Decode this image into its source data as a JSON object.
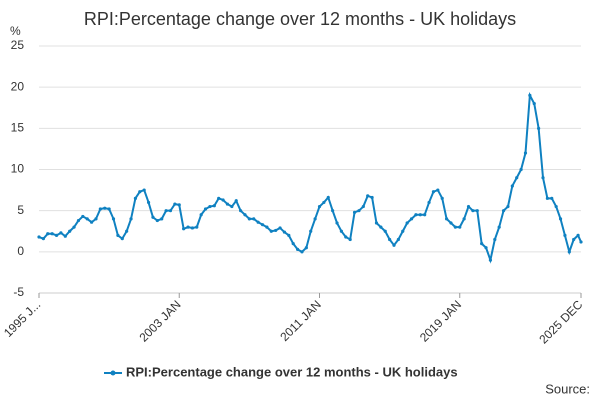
{
  "chart_data": {
    "type": "line",
    "title": "RPI:Percentage change over 12 months - UK holidays",
    "y_label": "%",
    "source": "Source:",
    "x": [
      1995,
      1995.25,
      1995.5,
      1995.75,
      1996,
      1996.25,
      1996.5,
      1996.75,
      1997,
      1997.25,
      1997.5,
      1997.75,
      1998,
      1998.25,
      1998.5,
      1998.75,
      1999,
      1999.25,
      1999.5,
      1999.75,
      2000,
      2000.25,
      2000.5,
      2000.75,
      2001,
      2001.25,
      2001.5,
      2001.75,
      2002,
      2002.25,
      2002.5,
      2002.75,
      2003,
      2003.25,
      2003.5,
      2003.75,
      2004,
      2004.25,
      2004.5,
      2004.75,
      2005,
      2005.25,
      2005.5,
      2005.75,
      2006,
      2006.25,
      2006.5,
      2006.75,
      2007,
      2007.25,
      2007.5,
      2007.75,
      2008,
      2008.25,
      2008.5,
      2008.75,
      2009,
      2009.25,
      2009.5,
      2009.75,
      2010,
      2010.25,
      2010.5,
      2010.75,
      2011,
      2011.25,
      2011.5,
      2011.75,
      2012,
      2012.25,
      2012.5,
      2012.75,
      2013,
      2013.25,
      2013.5,
      2013.75,
      2014,
      2014.25,
      2014.5,
      2014.75,
      2015,
      2015.25,
      2015.5,
      2015.75,
      2016,
      2016.25,
      2016.5,
      2016.75,
      2017,
      2017.25,
      2017.5,
      2017.75,
      2018,
      2018.25,
      2018.5,
      2018.75,
      2019,
      2019.25,
      2019.5,
      2019.75,
      2020,
      2020.25,
      2020.5,
      2020.75,
      2021,
      2021.25,
      2021.5,
      2021.75,
      2022,
      2022.25,
      2022.5,
      2022.75,
      2023,
      2023.25,
      2023.5,
      2023.75,
      2024,
      2024.25,
      2024.5,
      2024.75,
      2025,
      2025.25,
      2025.5,
      2025.75,
      2025.917
    ],
    "series": [
      {
        "name": "RPI:Percentage change over 12 months - UK holidays",
        "color": "#0f81c1",
        "values": [
          1.8,
          1.6,
          2.2,
          2.2,
          2.0,
          2.3,
          1.9,
          2.5,
          3.0,
          3.8,
          4.3,
          4.0,
          3.6,
          4.0,
          5.2,
          5.3,
          5.2,
          4.0,
          2.0,
          1.6,
          2.5,
          4.0,
          6.5,
          7.3,
          7.5,
          6.0,
          4.2,
          3.8,
          4.0,
          5.0,
          5.0,
          5.8,
          5.7,
          2.8,
          3.0,
          2.9,
          3.0,
          4.5,
          5.2,
          5.5,
          5.6,
          6.5,
          6.3,
          5.8,
          5.5,
          6.2,
          5.0,
          4.5,
          4.0,
          4.0,
          3.6,
          3.3,
          3.0,
          2.5,
          2.6,
          2.9,
          2.4,
          2.0,
          1.0,
          0.3,
          0.0,
          0.5,
          2.5,
          4.0,
          5.5,
          6.0,
          6.6,
          5.0,
          3.5,
          2.5,
          1.8,
          1.5,
          4.8,
          5.0,
          5.5,
          6.8,
          6.6,
          3.5,
          3.0,
          2.5,
          1.5,
          0.8,
          1.5,
          2.5,
          3.5,
          4.0,
          4.5,
          4.5,
          4.5,
          6.0,
          7.3,
          7.5,
          6.5,
          4.0,
          3.5,
          3.0,
          3.0,
          4.0,
          5.5,
          5.0,
          5.0,
          1.0,
          0.5,
          -1.0,
          1.5,
          3.0,
          5.0,
          5.5,
          8.0,
          9.0,
          10.0,
          12.0,
          19.0,
          18.0,
          15.0,
          9.0,
          6.5,
          6.5,
          5.5,
          4.0,
          2.0,
          0.0,
          1.5,
          2.0,
          1.2
        ]
      }
    ],
    "xlim": [
      1995,
      2025.917
    ],
    "xticks": [
      {
        "value": 1995,
        "label": "1995 J..."
      },
      {
        "value": 2003,
        "label": "2003 JAN"
      },
      {
        "value": 2011,
        "label": "2011 JAN"
      },
      {
        "value": 2019,
        "label": "2019 JAN"
      },
      {
        "value": 2025.917,
        "label": "2025 DEC"
      }
    ],
    "ylim": [
      -5,
      25
    ],
    "yticks": [
      -5,
      0,
      5,
      10,
      15,
      20,
      25
    ],
    "grid": true
  }
}
